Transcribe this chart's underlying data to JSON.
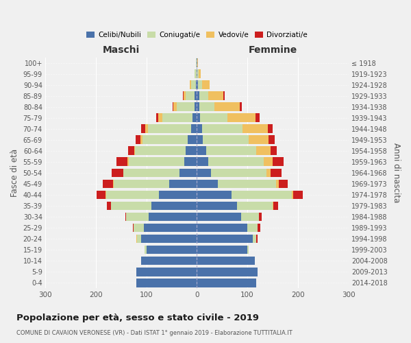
{
  "age_groups": [
    "0-4",
    "5-9",
    "10-14",
    "15-19",
    "20-24",
    "25-29",
    "30-34",
    "35-39",
    "40-44",
    "45-49",
    "50-54",
    "55-59",
    "60-64",
    "65-69",
    "70-74",
    "75-79",
    "80-84",
    "85-89",
    "90-94",
    "95-99",
    "100+"
  ],
  "birth_years": [
    "2014-2018",
    "2009-2013",
    "2004-2008",
    "1999-2003",
    "1994-1998",
    "1989-1993",
    "1984-1988",
    "1979-1983",
    "1974-1978",
    "1969-1973",
    "1964-1968",
    "1959-1963",
    "1954-1958",
    "1949-1953",
    "1944-1948",
    "1939-1943",
    "1934-1938",
    "1929-1933",
    "1924-1928",
    "1919-1923",
    "≤ 1918"
  ],
  "maschi": {
    "celibi": [
      120,
      120,
      110,
      100,
      110,
      105,
      95,
      90,
      75,
      55,
      35,
      25,
      22,
      18,
      12,
      8,
      5,
      4,
      2,
      1,
      1
    ],
    "coniugati": [
      0,
      0,
      0,
      3,
      8,
      20,
      45,
      80,
      105,
      110,
      110,
      110,
      100,
      90,
      85,
      60,
      35,
      18,
      10,
      3,
      1
    ],
    "vedovi": [
      0,
      0,
      0,
      0,
      2,
      0,
      0,
      0,
      1,
      1,
      1,
      2,
      2,
      3,
      5,
      8,
      6,
      4,
      2,
      0,
      0
    ],
    "divorziati": [
      0,
      0,
      0,
      0,
      0,
      1,
      2,
      8,
      18,
      20,
      22,
      22,
      12,
      10,
      8,
      4,
      2,
      2,
      0,
      0,
      0
    ]
  },
  "femmine": {
    "nubili": [
      118,
      120,
      115,
      100,
      110,
      100,
      88,
      80,
      68,
      42,
      28,
      22,
      18,
      12,
      10,
      6,
      5,
      5,
      2,
      1,
      1
    ],
    "coniugate": [
      0,
      0,
      0,
      3,
      8,
      20,
      35,
      70,
      120,
      115,
      110,
      110,
      100,
      90,
      80,
      55,
      30,
      18,
      8,
      2,
      0
    ],
    "vedove": [
      0,
      0,
      0,
      0,
      0,
      0,
      0,
      1,
      2,
      5,
      8,
      18,
      28,
      40,
      50,
      55,
      50,
      30,
      15,
      5,
      1
    ],
    "divorziate": [
      0,
      0,
      0,
      0,
      2,
      5,
      5,
      10,
      20,
      18,
      22,
      22,
      12,
      12,
      10,
      8,
      4,
      2,
      0,
      0,
      0
    ]
  },
  "colors": {
    "celibi": "#4a72aa",
    "coniugati": "#c8dca8",
    "vedovi": "#f0c060",
    "divorziati": "#cc1e1e"
  },
  "xlim": 300,
  "title": "Popolazione per età, sesso e stato civile - 2019",
  "subtitle": "COMUNE DI CAVAION VERONESE (VR) - Dati ISTAT 1° gennaio 2019 - Elaborazione TUTTITALIA.IT",
  "ylabel_left": "Fasce di età",
  "ylabel_right": "Anni di nascita",
  "xlabel_maschi": "Maschi",
  "xlabel_femmine": "Femmine",
  "legend_labels": [
    "Celibi/Nubili",
    "Coniugati/e",
    "Vedovi/e",
    "Divorziati/e"
  ],
  "bg_color": "#f0f0f0"
}
